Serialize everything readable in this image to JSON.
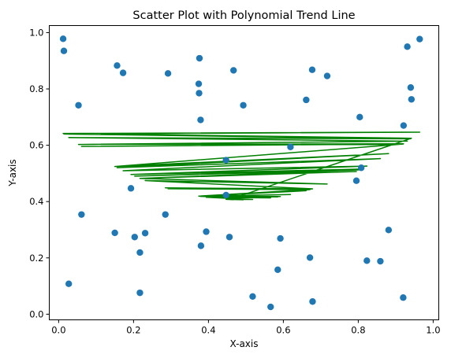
{
  "chart_data": {
    "type": "scatter",
    "title": "Scatter Plot with Polynomial Trend Line",
    "xlabel": "X-axis",
    "ylabel": "Y-axis",
    "xlim": [
      -0.025,
      1.015
    ],
    "ylim": [
      -0.02,
      1.025
    ],
    "xticks": [
      "0.0",
      "0.2",
      "0.4",
      "0.6",
      "0.8",
      "1.0"
    ],
    "yticks": [
      "0.0",
      "0.2",
      "0.4",
      "0.6",
      "0.8",
      "1.0"
    ],
    "grid": false,
    "legend": "none",
    "colors": {
      "points": "#1f77b4",
      "trend": "#008000"
    },
    "points": [
      [
        0.012,
        0.978
      ],
      [
        0.014,
        0.935
      ],
      [
        0.027,
        0.108
      ],
      [
        0.053,
        0.742
      ],
      [
        0.061,
        0.354
      ],
      [
        0.15,
        0.289
      ],
      [
        0.156,
        0.883
      ],
      [
        0.172,
        0.857
      ],
      [
        0.193,
        0.447
      ],
      [
        0.203,
        0.274
      ],
      [
        0.217,
        0.219
      ],
      [
        0.217,
        0.076
      ],
      [
        0.231,
        0.288
      ],
      [
        0.285,
        0.354
      ],
      [
        0.292,
        0.855
      ],
      [
        0.374,
        0.818
      ],
      [
        0.375,
        0.785
      ],
      [
        0.376,
        0.909
      ],
      [
        0.379,
        0.69
      ],
      [
        0.38,
        0.243
      ],
      [
        0.394,
        0.293
      ],
      [
        0.447,
        0.547
      ],
      [
        0.447,
        0.423
      ],
      [
        0.456,
        0.274
      ],
      [
        0.467,
        0.866
      ],
      [
        0.493,
        0.742
      ],
      [
        0.518,
        0.063
      ],
      [
        0.566,
        0.026
      ],
      [
        0.585,
        0.158
      ],
      [
        0.592,
        0.269
      ],
      [
        0.619,
        0.594
      ],
      [
        0.661,
        0.761
      ],
      [
        0.671,
        0.201
      ],
      [
        0.677,
        0.868
      ],
      [
        0.678,
        0.045
      ],
      [
        0.717,
        0.846
      ],
      [
        0.795,
        0.474
      ],
      [
        0.804,
        0.7
      ],
      [
        0.808,
        0.52
      ],
      [
        0.823,
        0.19
      ],
      [
        0.859,
        0.188
      ],
      [
        0.881,
        0.299
      ],
      [
        0.92,
        0.059
      ],
      [
        0.921,
        0.67
      ],
      [
        0.931,
        0.95
      ],
      [
        0.94,
        0.805
      ],
      [
        0.942,
        0.763
      ],
      [
        0.964,
        0.977
      ]
    ],
    "trend": {
      "label": "",
      "model": "polynomial",
      "coefficients": [
        0.654,
        -1.02,
        1.05
      ],
      "x_order": [
        0.012,
        0.964,
        0.014,
        0.94,
        0.027,
        0.931,
        0.053,
        0.921,
        0.061,
        0.92,
        0.15,
        0.881,
        0.156,
        0.859,
        0.172,
        0.823,
        0.193,
        0.808,
        0.203,
        0.804,
        0.217,
        0.795,
        0.217,
        0.717,
        0.231,
        0.678,
        0.285,
        0.677,
        0.292,
        0.671,
        0.374,
        0.661,
        0.375,
        0.619,
        0.376,
        0.592,
        0.379,
        0.585,
        0.38,
        0.566,
        0.394,
        0.518,
        0.447,
        0.493,
        0.447,
        0.467,
        0.456,
        0.942,
        0.012,
        0.964
      ]
    }
  }
}
